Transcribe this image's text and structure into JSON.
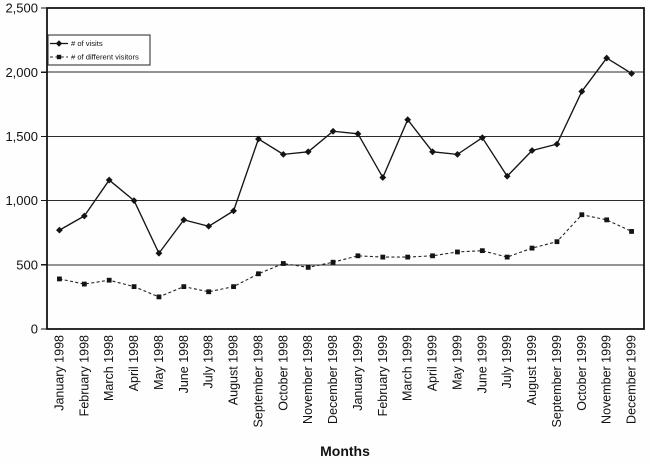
{
  "chart_data": {
    "type": "line",
    "title": "",
    "xlabel": "Months",
    "ylabel": "",
    "ylim": [
      0,
      2500
    ],
    "grid": "horizontal",
    "legend_position": "top-left",
    "line_color": "#141414",
    "ytick_values": [
      0,
      500,
      1000,
      1500,
      2000,
      2500
    ],
    "ytick_labels": [
      "0",
      "500",
      "1,000",
      "1,500",
      "2,000",
      "2,500"
    ],
    "categories": [
      "January 1998",
      "February 1998",
      "March 1998",
      "April 1998",
      "May 1998",
      "June 1998",
      "July 1998",
      "August 1998",
      "September 1998",
      "October 1998",
      "November 1998",
      "December 1998",
      "January 1999",
      "February 1999",
      "March 1999",
      "April 1999",
      "May 1999",
      "June 1999",
      "July 1999",
      "August 1999",
      "September 1999",
      "October 1999",
      "November 1999",
      "December 1999"
    ],
    "series": [
      {
        "name": "# of visits",
        "marker": "diamond",
        "line_style": "solid",
        "values": [
          770,
          880,
          1160,
          1000,
          590,
          850,
          800,
          920,
          1480,
          1360,
          1380,
          1540,
          1520,
          1180,
          1630,
          1380,
          1360,
          1490,
          1190,
          1390,
          1440,
          1850,
          2110,
          1990
        ]
      },
      {
        "name": "# of different visitors",
        "marker": "square",
        "line_style": "dashed",
        "values": [
          390,
          350,
          380,
          330,
          250,
          330,
          290,
          330,
          430,
          510,
          480,
          520,
          570,
          560,
          560,
          570,
          600,
          610,
          560,
          630,
          680,
          890,
          850,
          760
        ]
      }
    ]
  }
}
